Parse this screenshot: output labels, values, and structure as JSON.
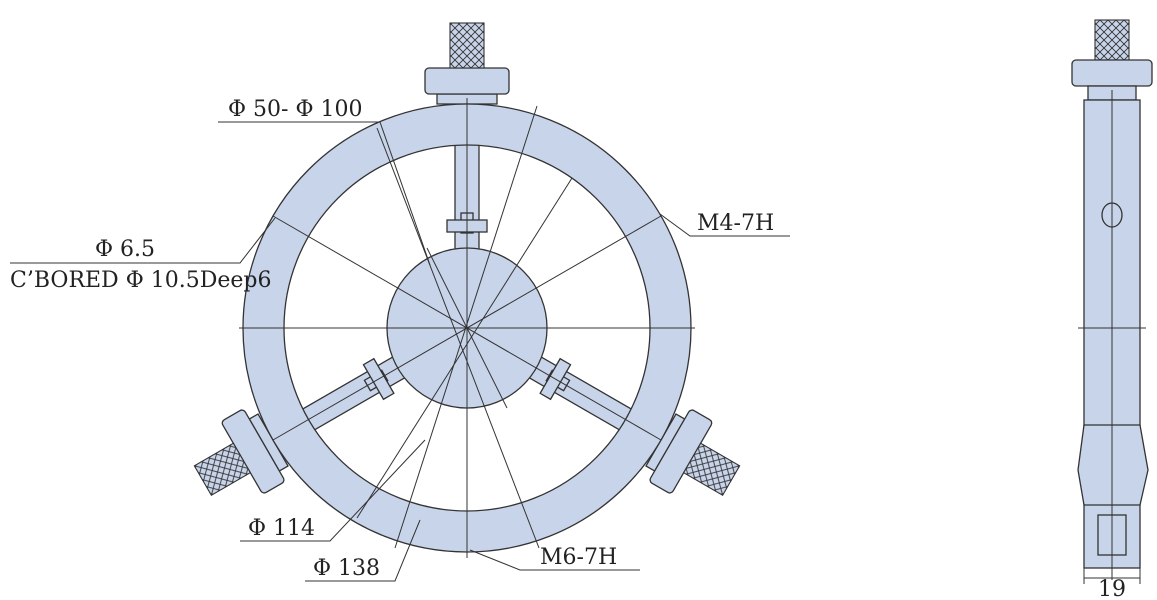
{
  "labels": {
    "bore_range": "Φ 50- Φ 100",
    "hole_diameter": "Φ 6.5",
    "counterbore": "C’BORED Φ 10.5Deep6",
    "thread_top": "M4-7H",
    "inner_diameter": "Φ 114",
    "outer_diameter": "Φ 138",
    "thread_bottom": "M6-7H",
    "thickness": "19"
  }
}
